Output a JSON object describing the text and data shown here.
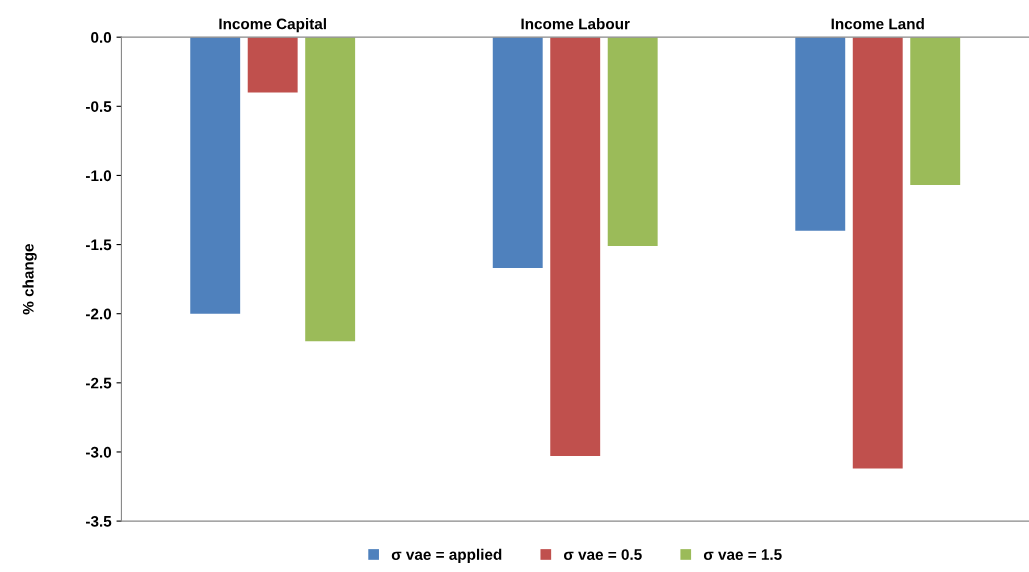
{
  "chart_data": {
    "type": "bar",
    "ylabel": "% change",
    "categories": [
      "Income Capital",
      "Income Labour",
      "Income Land"
    ],
    "series": [
      {
        "name": "σ vae = applied",
        "color": "#4f81bd",
        "values": [
          -2.0,
          -1.67,
          -1.4
        ]
      },
      {
        "name": "σ vae = 0.5",
        "color": "#c0504d",
        "values": [
          -0.4,
          -3.03,
          -3.12
        ]
      },
      {
        "name": "σ vae = 1.5",
        "color": "#9bbb59",
        "values": [
          -2.2,
          -1.51,
          -1.07
        ]
      }
    ],
    "ylim": [
      -3.5,
      0
    ],
    "yticks": [
      {
        "value": 0,
        "label": "0.0"
      },
      -0.5,
      {
        "value": -1,
        "label": "-1.0"
      },
      -1.5,
      {
        "value": -2,
        "label": "-2.0"
      },
      -2.5,
      {
        "value": -3,
        "label": "-3.0"
      },
      -3.5
    ],
    "grid": false,
    "legend": "bottom"
  }
}
